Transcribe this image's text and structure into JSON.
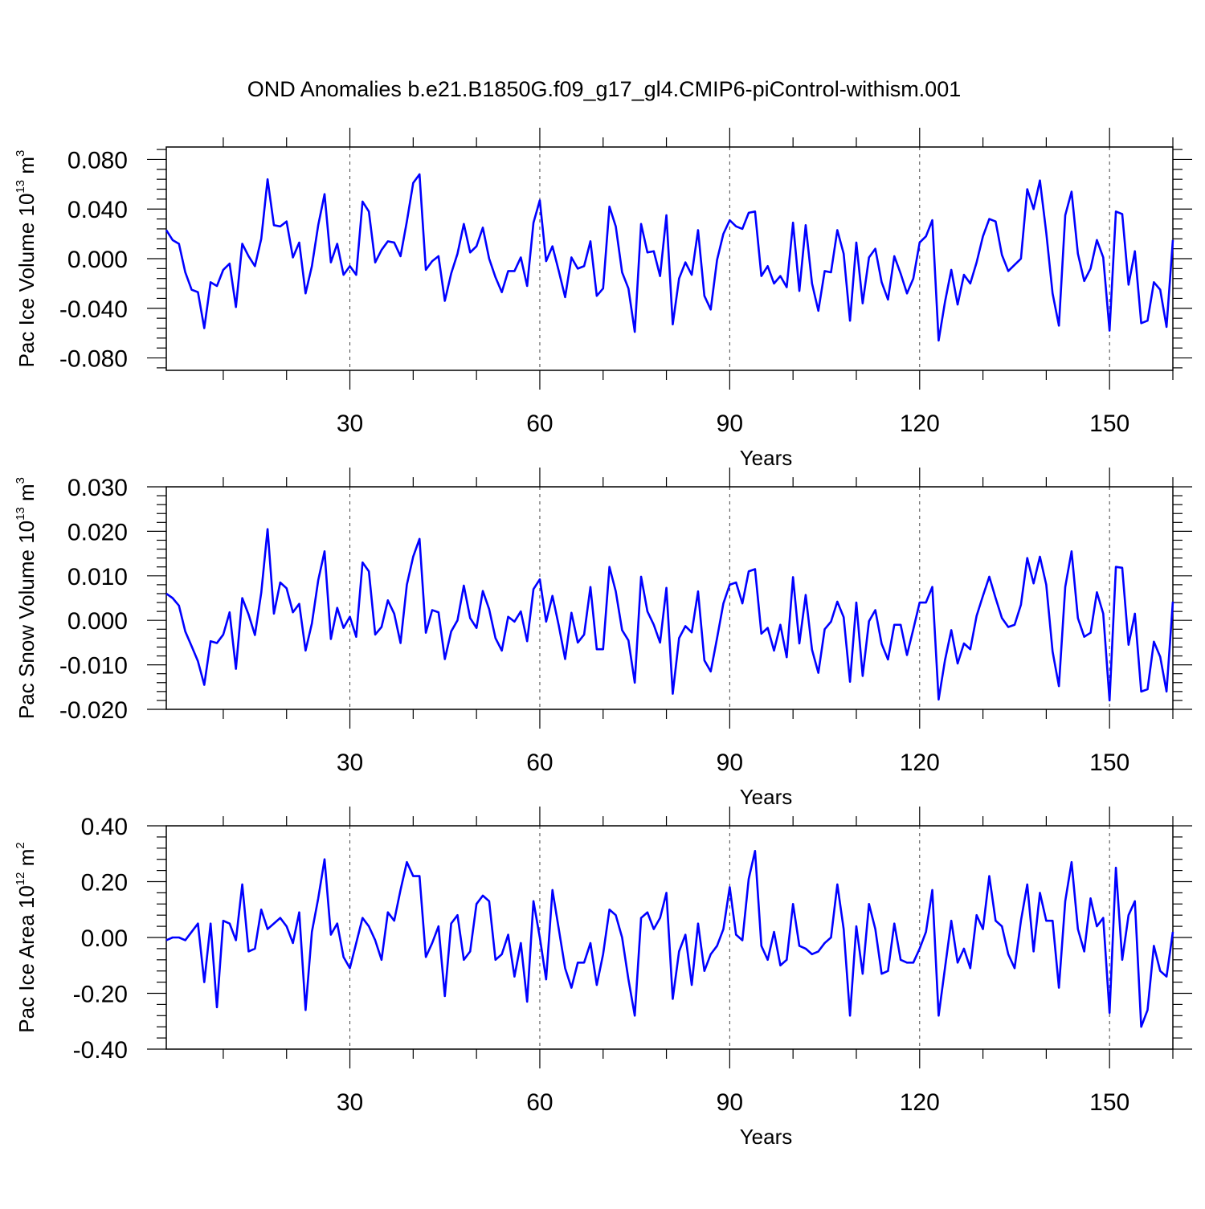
{
  "title": "OND Anomalies b.e21.B1850G.f09_g17_gl4.CMIP6-piControl-withism.001",
  "chart_data": [
    {
      "type": "line",
      "panel": "ice-volume",
      "ylabel": "Pac Ice Volume",
      "yunit_base": "10",
      "yunit_exp": "13",
      "yunit_tail": " m",
      "yunit_tail_exp": "3",
      "xlabel": "Years",
      "xlim": [
        1,
        160
      ],
      "ylim": [
        -0.09,
        0.09
      ],
      "xticks": [
        30,
        60,
        90,
        120,
        150
      ],
      "xtick_labels": [
        "30",
        "60",
        "90",
        "120",
        "150"
      ],
      "yticks": [
        0.08,
        0.04,
        0.0,
        -0.04,
        -0.08
      ],
      "ytick_labels": [
        "0.080",
        "0.040",
        "0.000",
        "-0.040",
        "-0.080"
      ],
      "grid": "vertical dashed at x ticks",
      "color": "#0000ff",
      "values": [
        0.023,
        0.015,
        0.012,
        -0.011,
        -0.025,
        -0.027,
        -0.056,
        -0.019,
        -0.022,
        -0.009,
        -0.004,
        -0.039,
        0.012,
        0.002,
        -0.006,
        0.016,
        0.064,
        0.027,
        0.026,
        0.03,
        0.001,
        0.013,
        -0.028,
        -0.006,
        0.027,
        0.052,
        -0.003,
        0.012,
        -0.013,
        -0.006,
        -0.013,
        0.046,
        0.038,
        -0.003,
        0.007,
        0.014,
        0.013,
        0.002,
        0.03,
        0.061,
        0.068,
        -0.009,
        -0.002,
        0.002,
        -0.034,
        -0.012,
        0.004,
        0.028,
        0.005,
        0.01,
        0.025,
        0.0,
        -0.015,
        -0.027,
        -0.01,
        -0.01,
        0.001,
        -0.022,
        0.029,
        0.047,
        -0.002,
        0.01,
        -0.01,
        -0.031,
        0.001,
        -0.008,
        -0.006,
        0.014,
        -0.03,
        -0.024,
        0.042,
        0.026,
        -0.011,
        -0.024,
        -0.059,
        0.028,
        0.005,
        0.006,
        -0.014,
        0.035,
        -0.053,
        -0.016,
        -0.003,
        -0.013,
        0.023,
        -0.03,
        -0.041,
        -0.001,
        0.02,
        0.031,
        0.026,
        0.024,
        0.037,
        0.038,
        -0.014,
        -0.006,
        -0.02,
        -0.014,
        -0.023,
        0.029,
        -0.026,
        0.027,
        -0.02,
        -0.042,
        -0.01,
        -0.011,
        0.023,
        0.004,
        -0.05,
        0.013,
        -0.036,
        0.001,
        0.008,
        -0.019,
        -0.033,
        0.002,
        -0.012,
        -0.028,
        -0.016,
        0.013,
        0.018,
        0.031,
        -0.066,
        -0.035,
        -0.009,
        -0.037,
        -0.013,
        -0.02,
        -0.003,
        0.018,
        0.032,
        0.03,
        0.003,
        -0.01,
        -0.005,
        0.0,
        0.056,
        0.04,
        0.063,
        0.021,
        -0.028,
        -0.054,
        0.035,
        0.054,
        0.004,
        -0.018,
        -0.008,
        0.015,
        0.001,
        -0.058,
        0.038,
        0.036,
        -0.021,
        0.006,
        -0.052,
        -0.05,
        -0.019,
        -0.025,
        -0.055,
        0.015
      ]
    },
    {
      "type": "line",
      "panel": "snow-volume",
      "ylabel": "Pac Snow Volume",
      "yunit_base": "10",
      "yunit_exp": "13",
      "yunit_tail": " m",
      "yunit_tail_exp": "3",
      "xlabel": "Years",
      "xlim": [
        1,
        160
      ],
      "ylim": [
        -0.02,
        0.03
      ],
      "xticks": [
        30,
        60,
        90,
        120,
        150
      ],
      "xtick_labels": [
        "30",
        "60",
        "90",
        "120",
        "150"
      ],
      "yticks": [
        0.03,
        0.02,
        0.01,
        0.0,
        -0.01,
        -0.02
      ],
      "ytick_labels": [
        "0.030",
        "0.020",
        "0.010",
        "0.000",
        "-0.010",
        "-0.020"
      ],
      "grid": "vertical dashed at x ticks",
      "color": "#0000ff",
      "values": [
        0.006,
        0.005,
        0.0033,
        -0.0025,
        -0.0058,
        -0.0092,
        -0.0145,
        -0.0047,
        -0.0051,
        -0.0032,
        0.0018,
        -0.0109,
        0.005,
        0.0013,
        -0.0033,
        0.0062,
        0.0205,
        0.0015,
        0.0085,
        0.0072,
        0.0018,
        0.0037,
        -0.0068,
        -0.0007,
        0.009,
        0.0155,
        -0.0042,
        0.0028,
        -0.0017,
        0.0008,
        -0.0037,
        0.013,
        0.011,
        -0.0032,
        -0.0015,
        0.0045,
        0.0015,
        -0.0051,
        0.008,
        0.0143,
        0.0183,
        -0.0028,
        0.0023,
        0.0018,
        -0.0087,
        -0.0025,
        0.0,
        0.0078,
        0.0005,
        -0.0017,
        0.0066,
        0.0025,
        -0.004,
        -0.0068,
        0.0008,
        -0.0003,
        0.002,
        -0.0047,
        0.007,
        0.0092,
        -0.0003,
        0.0055,
        -0.0012,
        -0.0087,
        0.0017,
        -0.005,
        -0.0032,
        0.0075,
        -0.0065,
        -0.0065,
        0.012,
        0.0065,
        -0.0022,
        -0.0045,
        -0.014,
        0.0098,
        0.002,
        -0.001,
        -0.005,
        0.0073,
        -0.0165,
        -0.004,
        -0.0013,
        -0.0027,
        0.0065,
        -0.009,
        -0.0115,
        -0.004,
        0.0038,
        0.008,
        0.0085,
        0.0038,
        0.011,
        0.0115,
        -0.003,
        -0.0017,
        -0.0068,
        -0.001,
        -0.0083,
        0.0097,
        -0.0052,
        0.0057,
        -0.0066,
        -0.0118,
        -0.002,
        -0.0003,
        0.0042,
        0.0007,
        -0.0138,
        0.004,
        -0.0125,
        -0.0002,
        0.0023,
        -0.0053,
        -0.0088,
        -0.001,
        -0.001,
        -0.0078,
        -0.002,
        0.004,
        0.004,
        0.0075,
        -0.0178,
        -0.009,
        -0.0022,
        -0.0097,
        -0.0052,
        -0.0065,
        0.001,
        0.0055,
        0.0098,
        0.005,
        0.0005,
        -0.0015,
        -0.001,
        0.0035,
        0.014,
        0.0083,
        0.0143,
        0.008,
        -0.007,
        -0.0148,
        0.0075,
        0.0155,
        0.0005,
        -0.0037,
        -0.0028,
        0.0063,
        0.0015,
        -0.018,
        0.012,
        0.0118,
        -0.0055,
        0.0015,
        -0.016,
        -0.0155,
        -0.0048,
        -0.0082,
        -0.016,
        0.0042
      ]
    },
    {
      "type": "line",
      "panel": "ice-area",
      "ylabel": "Pac Ice Area",
      "yunit_base": "10",
      "yunit_exp": "12",
      "yunit_tail": " m",
      "yunit_tail_exp": "2",
      "xlabel": "Years",
      "xlim": [
        1,
        160
      ],
      "ylim": [
        -0.4,
        0.4
      ],
      "xticks": [
        30,
        60,
        90,
        120,
        150
      ],
      "xtick_labels": [
        "30",
        "60",
        "90",
        "120",
        "150"
      ],
      "yticks": [
        0.4,
        0.2,
        0.0,
        -0.2,
        -0.4
      ],
      "ytick_labels": [
        "0.40",
        "0.20",
        "0.00",
        "-0.20",
        "-0.40"
      ],
      "grid": "vertical dashed at x ticks",
      "color": "#0000ff",
      "values": [
        -0.01,
        0.0,
        0.0,
        -0.01,
        0.02,
        0.05,
        -0.16,
        0.05,
        -0.25,
        0.06,
        0.05,
        -0.01,
        0.19,
        -0.05,
        -0.04,
        0.1,
        0.03,
        0.05,
        0.07,
        0.04,
        -0.02,
        0.09,
        -0.26,
        0.02,
        0.14,
        0.28,
        0.01,
        0.05,
        -0.07,
        -0.11,
        -0.02,
        0.07,
        0.04,
        -0.01,
        -0.08,
        0.09,
        0.06,
        0.17,
        0.27,
        0.22,
        0.22,
        -0.07,
        -0.02,
        0.04,
        -0.21,
        0.05,
        0.08,
        -0.08,
        -0.05,
        0.12,
        0.15,
        0.13,
        -0.08,
        -0.06,
        0.01,
        -0.14,
        -0.02,
        -0.23,
        0.13,
        0.0,
        -0.15,
        0.17,
        0.03,
        -0.11,
        -0.18,
        -0.09,
        -0.09,
        -0.02,
        -0.17,
        -0.06,
        0.1,
        0.08,
        0.0,
        -0.15,
        -0.28,
        0.07,
        0.09,
        0.03,
        0.07,
        0.16,
        -0.22,
        -0.05,
        0.01,
        -0.17,
        0.05,
        -0.12,
        -0.06,
        -0.03,
        0.03,
        0.18,
        0.01,
        -0.01,
        0.21,
        0.31,
        -0.03,
        -0.08,
        0.02,
        -0.1,
        -0.08,
        0.12,
        -0.03,
        -0.04,
        -0.06,
        -0.05,
        -0.02,
        0.0,
        0.19,
        0.03,
        -0.28,
        0.04,
        -0.13,
        0.12,
        0.03,
        -0.13,
        -0.12,
        0.05,
        -0.08,
        -0.09,
        -0.09,
        -0.04,
        0.02,
        0.17,
        -0.28,
        -0.11,
        0.06,
        -0.09,
        -0.04,
        -0.11,
        0.08,
        0.03,
        0.22,
        0.06,
        0.04,
        -0.06,
        -0.11,
        0.06,
        0.19,
        -0.05,
        0.16,
        0.06,
        0.06,
        -0.18,
        0.13,
        0.27,
        0.03,
        -0.05,
        0.14,
        0.04,
        0.07,
        -0.27,
        0.25,
        -0.08,
        0.08,
        0.13,
        -0.32,
        -0.26,
        -0.03,
        -0.12,
        -0.14,
        0.02
      ]
    }
  ]
}
